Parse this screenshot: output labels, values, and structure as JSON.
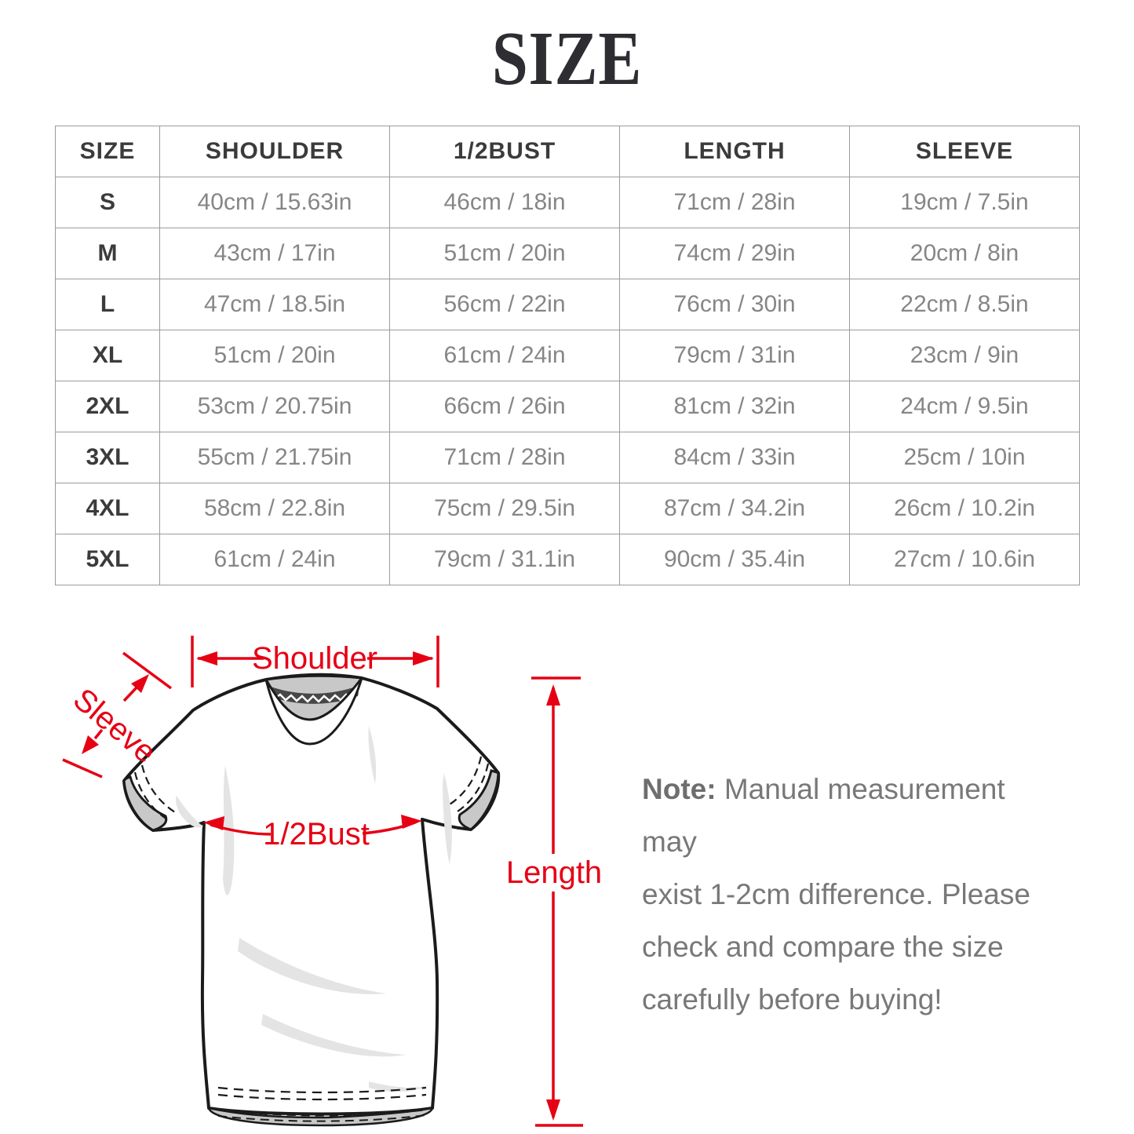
{
  "title": "SIZE",
  "table": {
    "columns": [
      "SIZE",
      "SHOULDER",
      "1/2BUST",
      "LENGTH",
      "SLEEVE"
    ],
    "rows": [
      {
        "size": "S",
        "values": [
          "40cm / 15.63in",
          "46cm / 18in",
          "71cm / 28in",
          "19cm / 7.5in"
        ]
      },
      {
        "size": "M",
        "values": [
          "43cm / 17in",
          "51cm / 20in",
          "74cm / 29in",
          "20cm / 8in"
        ]
      },
      {
        "size": "L",
        "values": [
          "47cm / 18.5in",
          "56cm / 22in",
          "76cm / 30in",
          "22cm / 8.5in"
        ]
      },
      {
        "size": "XL",
        "values": [
          "51cm / 20in",
          "61cm / 24in",
          "79cm / 31in",
          "23cm / 9in"
        ]
      },
      {
        "size": "2XL",
        "values": [
          "53cm / 20.75in",
          "66cm / 26in",
          "81cm / 32in",
          "24cm / 9.5in"
        ]
      },
      {
        "size": "3XL",
        "values": [
          "55cm / 21.75in",
          "71cm / 28in",
          "84cm / 33in",
          "25cm / 10in"
        ]
      },
      {
        "size": "4XL",
        "values": [
          "58cm / 22.8in",
          "75cm / 29.5in",
          "87cm / 34.2in",
          "26cm / 10.2in"
        ]
      },
      {
        "size": "5XL",
        "values": [
          "61cm / 24in",
          "79cm / 31.1in",
          "90cm / 35.4in",
          "27cm / 10.6in"
        ]
      }
    ]
  },
  "diagram": {
    "labels": {
      "shoulder": "Shoulder",
      "sleeve": "Sleeve",
      "half_bust": "1/2Bust",
      "length": "Length"
    }
  },
  "note": {
    "label": "Note:",
    "lines": [
      "Manual measurement may",
      "exist 1-2cm difference. Please",
      "check and compare the size",
      "carefully before buying!"
    ]
  },
  "colors": {
    "accent_red": "#e60014",
    "header_text": "#3b3b3b",
    "value_text": "#868686",
    "note_text": "#787878",
    "table_border": "#9b9b9b",
    "shirt_outline": "#1b1b1b",
    "shirt_shade_gray": "#c8c8c8"
  }
}
